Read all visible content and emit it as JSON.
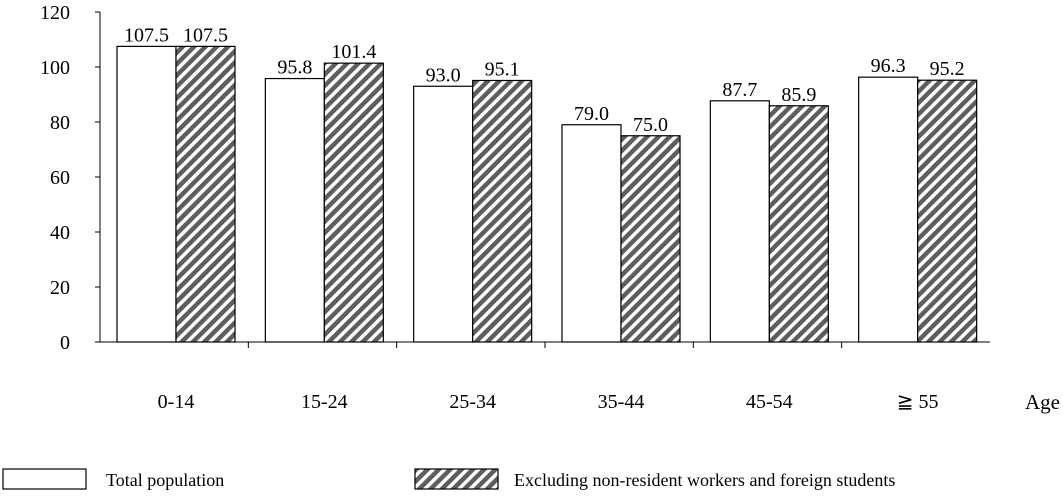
{
  "chart_data": {
    "type": "bar",
    "title": "",
    "xlabel": "Age",
    "ylabel": "",
    "ylim": [
      0,
      120
    ],
    "yticks": [
      0,
      20,
      40,
      60,
      80,
      100,
      120
    ],
    "categories": [
      "0-14",
      "15-24",
      "25-34",
      "35-44",
      "45-54",
      "≧ 55"
    ],
    "series": [
      {
        "name": "Total population",
        "values": [
          107.5,
          95.8,
          93.0,
          79.0,
          87.7,
          96.3
        ],
        "labels": [
          "107.5",
          "95.8",
          "93.0",
          "79.0",
          "87.7",
          "96.3"
        ],
        "fill": "#ffffff"
      },
      {
        "name": "Excluding non-resident workers and foreign students",
        "values": [
          107.5,
          101.4,
          95.1,
          75.0,
          85.9,
          95.2
        ],
        "labels": [
          "107.5",
          "101.4",
          "95.1",
          "75.0",
          "85.9",
          "95.2"
        ],
        "fill": "hatched"
      }
    ],
    "grid": false,
    "legend_position": "bottom"
  }
}
